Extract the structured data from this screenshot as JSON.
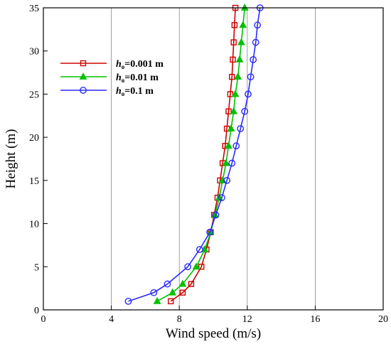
{
  "chart_data": {
    "type": "line",
    "xlabel": "Wind speed (m/s)",
    "ylabel": "Height (m)",
    "xlim": [
      0,
      20
    ],
    "ylim": [
      0,
      35
    ],
    "xticks": [
      0,
      4,
      8,
      12,
      16,
      20
    ],
    "yticks": [
      0,
      5,
      10,
      15,
      20,
      25,
      30,
      35
    ],
    "grid": "vertical",
    "legend_position": "top-left",
    "y": [
      1,
      2,
      3,
      5,
      7,
      9,
      11,
      13,
      15,
      17,
      19,
      21,
      23,
      25,
      27,
      29,
      31,
      33,
      35
    ],
    "series": [
      {
        "name_prefix": "h",
        "name_sub": "o",
        "name_suffix": "=0.001 m",
        "color": "#d00000",
        "marker": "square",
        "x": [
          7.5,
          8.2,
          8.7,
          9.3,
          9.6,
          9.85,
          10.05,
          10.25,
          10.4,
          10.55,
          10.7,
          10.8,
          10.9,
          11.0,
          11.1,
          11.15,
          11.2,
          11.25,
          11.3
        ]
      },
      {
        "name_prefix": "h",
        "name_sub": "o",
        "name_suffix": "=0.01 m",
        "color": "#00c000",
        "marker": "triangle",
        "x": [
          6.7,
          7.6,
          8.2,
          9.0,
          9.5,
          9.85,
          10.1,
          10.35,
          10.55,
          10.75,
          10.9,
          11.05,
          11.2,
          11.3,
          11.45,
          11.55,
          11.65,
          11.75,
          11.85
        ]
      },
      {
        "name_prefix": "h",
        "name_sub": "o",
        "name_suffix": "=0.1 m",
        "color": "#2a2aff",
        "marker": "circle",
        "x": [
          5.0,
          6.5,
          7.3,
          8.5,
          9.2,
          9.8,
          10.15,
          10.5,
          10.8,
          11.1,
          11.35,
          11.6,
          11.85,
          12.05,
          12.2,
          12.35,
          12.5,
          12.6,
          12.75
        ]
      }
    ]
  }
}
